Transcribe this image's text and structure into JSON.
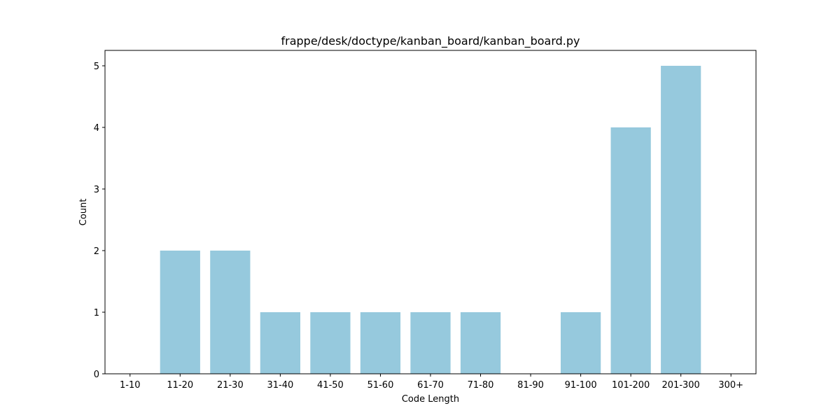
{
  "chart_data": {
    "type": "bar",
    "title": "frappe/desk/doctype/kanban_board/kanban_board.py",
    "xlabel": "Code Length",
    "ylabel": "Count",
    "categories": [
      "1-10",
      "11-20",
      "21-30",
      "31-40",
      "41-50",
      "51-60",
      "61-70",
      "71-80",
      "81-90",
      "91-100",
      "101-200",
      "201-300",
      "300+"
    ],
    "values": [
      0,
      2,
      2,
      1,
      1,
      1,
      1,
      1,
      0,
      1,
      4,
      5,
      0
    ],
    "ylim": [
      0,
      5.25
    ],
    "yticks": [
      0,
      1,
      2,
      3,
      4,
      5
    ],
    "bar_color": "#96c9dd",
    "grid": false,
    "legend": false
  }
}
